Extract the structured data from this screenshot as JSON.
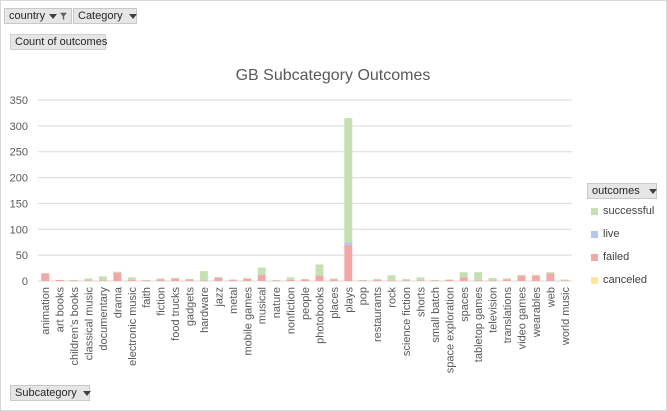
{
  "filters": {
    "country_label": "country",
    "category_label": "Category",
    "values_label": "Count of outcomes",
    "axis_field_label": "Subcategory"
  },
  "legend": {
    "title": "outcomes"
  },
  "colors": {
    "successful": "#c6e0b4",
    "live": "#b4c7e7",
    "failed": "#f4a7a7",
    "canceled": "#ffe699",
    "gridline": "#d9d9d9",
    "text": "#595959"
  },
  "chart_data": {
    "type": "bar",
    "stacked": true,
    "title": "GB Subcategory Outcomes",
    "xlabel": "",
    "ylabel": "",
    "ylim": [
      0,
      350
    ],
    "yticks": [
      0,
      50,
      100,
      150,
      200,
      250,
      300,
      350
    ],
    "grid": true,
    "legend_position": "right",
    "categories": [
      "animation",
      "art books",
      "children's books",
      "classical music",
      "documentary",
      "drama",
      "electronic music",
      "faith",
      "fiction",
      "food trucks",
      "gadgets",
      "hardware",
      "jazz",
      "metal",
      "mobile games",
      "musical",
      "nature",
      "nonfiction",
      "people",
      "photobooks",
      "places",
      "plays",
      "pop",
      "restaurants",
      "rock",
      "science fiction",
      "shorts",
      "small batch",
      "space exploration",
      "spaces",
      "tabletop games",
      "television",
      "translations",
      "video games",
      "wearables",
      "web",
      "world music"
    ],
    "series": [
      {
        "name": "successful",
        "values": [
          0,
          0,
          1,
          4,
          8,
          2,
          5,
          1,
          2,
          1,
          1,
          18,
          2,
          1,
          2,
          14,
          1,
          5,
          1,
          21,
          2,
          240,
          1,
          2,
          10,
          3,
          6,
          1,
          1,
          10,
          16,
          5,
          2,
          2,
          2,
          2,
          2
        ]
      },
      {
        "name": "live",
        "values": [
          0,
          0,
          0,
          0,
          0,
          0,
          0,
          0,
          0,
          0,
          0,
          0,
          0,
          0,
          0,
          0,
          0,
          0,
          0,
          0,
          0,
          5,
          0,
          0,
          0,
          0,
          0,
          0,
          0,
          0,
          0,
          0,
          0,
          0,
          0,
          0,
          0
        ]
      },
      {
        "name": "failed",
        "values": [
          15,
          2,
          1,
          1,
          1,
          16,
          2,
          1,
          3,
          5,
          3,
          1,
          6,
          2,
          4,
          12,
          1,
          2,
          3,
          11,
          3,
          70,
          1,
          2,
          1,
          1,
          1,
          1,
          2,
          7,
          1,
          1,
          3,
          10,
          10,
          15,
          1
        ]
      },
      {
        "name": "canceled",
        "values": [
          0,
          0,
          0,
          0,
          0,
          0,
          0,
          0,
          0,
          0,
          0,
          0,
          0,
          0,
          0,
          0,
          0,
          0,
          0,
          0,
          0,
          0,
          0,
          0,
          0,
          0,
          0,
          0,
          0,
          0,
          0,
          0,
          0,
          0,
          0,
          0,
          0
        ]
      }
    ]
  }
}
